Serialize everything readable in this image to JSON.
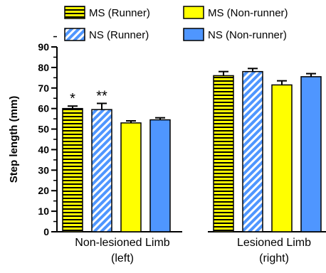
{
  "chart_data": {
    "type": "bar",
    "ylabel": "Step length (mm)",
    "ylim": [
      0,
      90
    ],
    "yticks": [
      "0",
      "10",
      "20",
      "30",
      "40",
      "50",
      "60",
      "70",
      "80",
      "90"
    ],
    "categories": [
      {
        "line1": "Non-lesioned Limb",
        "line2": "(left)"
      },
      {
        "line1": "Lesioned Limb",
        "line2": "(right)"
      }
    ],
    "series": [
      {
        "name": "MS (Runner)",
        "values": [
          60,
          76
        ],
        "errors": [
          1.2,
          2.0
        ],
        "color": "#ffff00",
        "pattern": "horizontal-stripes"
      },
      {
        "name": "NS (Runner)",
        "values": [
          59.5,
          78
        ],
        "errors": [
          3.0,
          1.5
        ],
        "color": "#4f96ff",
        "pattern": "diagonal-stripes"
      },
      {
        "name": "MS (Non-runner)",
        "values": [
          53,
          71.5
        ],
        "errors": [
          1.0,
          2.0
        ],
        "color": "#ffff00",
        "pattern": "solid"
      },
      {
        "name": "NS (Non-runner)",
        "values": [
          54.5,
          75.5
        ],
        "errors": [
          1.0,
          1.5
        ],
        "color": "#4f96ff",
        "pattern": "solid"
      }
    ],
    "annotations": [
      {
        "text": "*",
        "category": 0,
        "series": 0
      },
      {
        "text": "**",
        "category": 0,
        "series": 1
      }
    ],
    "legend": {
      "placement": "top",
      "order": [
        0,
        2,
        1,
        3
      ]
    }
  }
}
